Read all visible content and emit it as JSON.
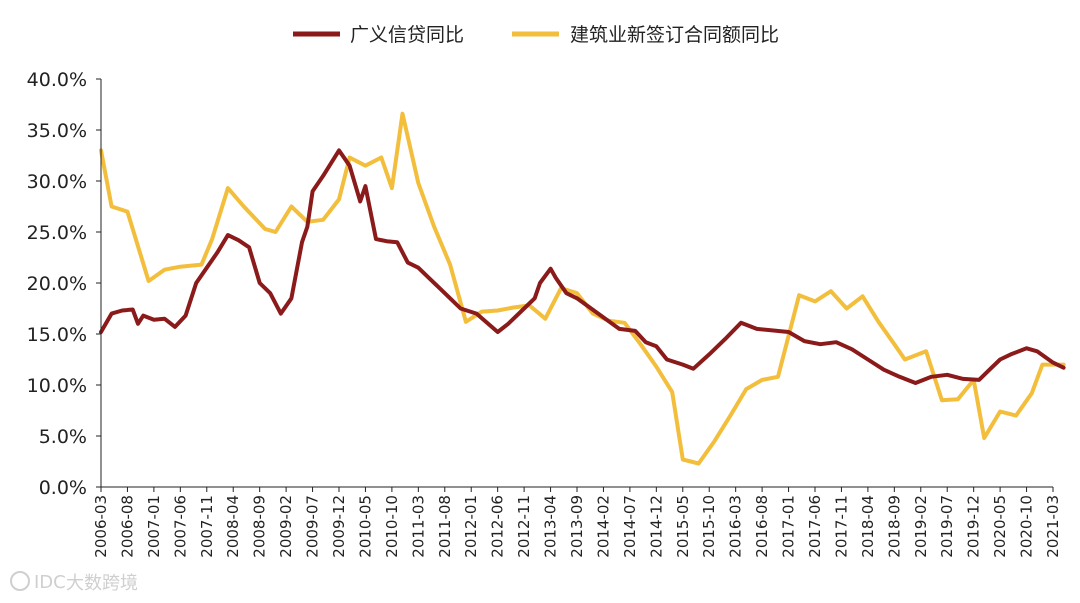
{
  "chart_data": {
    "type": "line",
    "title": "",
    "xlabel": "",
    "ylabel": "",
    "ylim": [
      0,
      40
    ],
    "y_ticks": [
      "0.0%",
      "5.0%",
      "10.0%",
      "15.0%",
      "20.0%",
      "25.0%",
      "30.0%",
      "35.0%",
      "40.0%"
    ],
    "x_ticks": [
      "2006-03",
      "2006-08",
      "2007-01",
      "2007-06",
      "2007-11",
      "2008-04",
      "2008-09",
      "2009-02",
      "2009-07",
      "2009-12",
      "2010-05",
      "2010-10",
      "2011-03",
      "2011-08",
      "2012-01",
      "2012-06",
      "2012-11",
      "2013-04",
      "2013-09",
      "2014-02",
      "2014-07",
      "2014-12",
      "2015-05",
      "2015-10",
      "2016-03",
      "2016-08",
      "2017-01",
      "2017-06",
      "2017-11",
      "2018-04",
      "2018-09",
      "2019-02",
      "2019-07",
      "2019-12",
      "2020-05",
      "2020-10",
      "2021-03"
    ],
    "x_range": [
      "2006-03",
      "2021-03"
    ],
    "legend_position": "top-center",
    "series": [
      {
        "name": "广义信贷同比",
        "color": "#8B1A1A",
        "points": [
          [
            "2006-03",
            15.2
          ],
          [
            "2006-05",
            17.0
          ],
          [
            "2006-07",
            17.3
          ],
          [
            "2006-09",
            17.4
          ],
          [
            "2006-10",
            16.0
          ],
          [
            "2006-11",
            16.8
          ],
          [
            "2007-01",
            16.4
          ],
          [
            "2007-03",
            16.5
          ],
          [
            "2007-05",
            15.7
          ],
          [
            "2007-07",
            16.8
          ],
          [
            "2007-09",
            20.0
          ],
          [
            "2007-11",
            21.5
          ],
          [
            "2008-01",
            23.0
          ],
          [
            "2008-03",
            24.7
          ],
          [
            "2008-05",
            24.2
          ],
          [
            "2008-07",
            23.5
          ],
          [
            "2008-09",
            20.0
          ],
          [
            "2008-11",
            19.0
          ],
          [
            "2009-01",
            17.0
          ],
          [
            "2009-03",
            18.5
          ],
          [
            "2009-05",
            24.0
          ],
          [
            "2009-06",
            25.5
          ],
          [
            "2009-07",
            29.0
          ],
          [
            "2009-09",
            30.5
          ],
          [
            "2009-12",
            33.0
          ],
          [
            "2010-02",
            31.5
          ],
          [
            "2010-04",
            28.0
          ],
          [
            "2010-05",
            29.5
          ],
          [
            "2010-07",
            24.3
          ],
          [
            "2010-09",
            24.1
          ],
          [
            "2010-11",
            24.0
          ],
          [
            "2011-01",
            22.0
          ],
          [
            "2011-03",
            21.5
          ],
          [
            "2011-05",
            20.5
          ],
          [
            "2011-07",
            19.5
          ],
          [
            "2011-09",
            18.5
          ],
          [
            "2011-11",
            17.5
          ],
          [
            "2012-02",
            17.0
          ],
          [
            "2012-06",
            15.2
          ],
          [
            "2012-08",
            16.0
          ],
          [
            "2012-11",
            17.5
          ],
          [
            "2013-01",
            18.5
          ],
          [
            "2013-02",
            20.0
          ],
          [
            "2013-04",
            21.4
          ],
          [
            "2013-05",
            20.5
          ],
          [
            "2013-07",
            19.0
          ],
          [
            "2013-09",
            18.5
          ],
          [
            "2014-01",
            17.0
          ],
          [
            "2014-05",
            15.5
          ],
          [
            "2014-08",
            15.3
          ],
          [
            "2014-10",
            14.2
          ],
          [
            "2014-12",
            13.8
          ],
          [
            "2015-02",
            12.5
          ],
          [
            "2015-05",
            12.0
          ],
          [
            "2015-07",
            11.6
          ],
          [
            "2015-10",
            13.0
          ],
          [
            "2016-01",
            14.5
          ],
          [
            "2016-04",
            16.1
          ],
          [
            "2016-07",
            15.5
          ],
          [
            "2017-01",
            15.2
          ],
          [
            "2017-04",
            14.3
          ],
          [
            "2017-07",
            14.0
          ],
          [
            "2017-10",
            14.2
          ],
          [
            "2018-01",
            13.5
          ],
          [
            "2018-04",
            12.5
          ],
          [
            "2018-07",
            11.5
          ],
          [
            "2018-10",
            10.8
          ],
          [
            "2019-01",
            10.2
          ],
          [
            "2019-04",
            10.8
          ],
          [
            "2019-07",
            11.0
          ],
          [
            "2019-10",
            10.6
          ],
          [
            "2020-01",
            10.5
          ],
          [
            "2020-03",
            11.5
          ],
          [
            "2020-05",
            12.5
          ],
          [
            "2020-07",
            13.0
          ],
          [
            "2020-10",
            13.6
          ],
          [
            "2020-12",
            13.3
          ],
          [
            "2021-03",
            12.2
          ],
          [
            "2021-05",
            11.7
          ]
        ]
      },
      {
        "name": "建筑业新签订合同额同比",
        "color": "#F2BE3C",
        "points": [
          [
            "2006-03",
            33.0
          ],
          [
            "2006-05",
            27.5
          ],
          [
            "2006-08",
            27.0
          ],
          [
            "2006-12",
            20.2
          ],
          [
            "2007-03",
            21.3
          ],
          [
            "2007-06",
            21.6
          ],
          [
            "2007-10",
            21.8
          ],
          [
            "2007-12",
            24.3
          ],
          [
            "2008-03",
            29.3
          ],
          [
            "2008-06",
            27.5
          ],
          [
            "2008-10",
            25.3
          ],
          [
            "2008-12",
            25.0
          ],
          [
            "2009-03",
            27.5
          ],
          [
            "2009-06",
            26.0
          ],
          [
            "2009-09",
            26.2
          ],
          [
            "2009-12",
            28.2
          ],
          [
            "2010-02",
            32.3
          ],
          [
            "2010-05",
            31.5
          ],
          [
            "2010-08",
            32.3
          ],
          [
            "2010-10",
            29.3
          ],
          [
            "2010-12",
            36.6
          ],
          [
            "2011-03",
            29.8
          ],
          [
            "2011-06",
            25.5
          ],
          [
            "2011-09",
            21.8
          ],
          [
            "2011-12",
            16.2
          ],
          [
            "2012-03",
            17.2
          ],
          [
            "2012-06",
            17.3
          ],
          [
            "2012-09",
            17.6
          ],
          [
            "2012-12",
            17.8
          ],
          [
            "2013-03",
            16.5
          ],
          [
            "2013-06",
            19.5
          ],
          [
            "2013-09",
            19.0
          ],
          [
            "2013-12",
            17.0
          ],
          [
            "2014-03",
            16.3
          ],
          [
            "2014-06",
            16.1
          ],
          [
            "2014-09",
            14.0
          ],
          [
            "2014-12",
            11.8
          ],
          [
            "2015-03",
            9.3
          ],
          [
            "2015-05",
            2.7
          ],
          [
            "2015-08",
            2.3
          ],
          [
            "2015-11",
            4.5
          ],
          [
            "2016-02",
            7.0
          ],
          [
            "2016-05",
            9.6
          ],
          [
            "2016-08",
            10.5
          ],
          [
            "2016-11",
            10.8
          ],
          [
            "2017-03",
            18.8
          ],
          [
            "2017-06",
            18.2
          ],
          [
            "2017-09",
            19.2
          ],
          [
            "2017-12",
            17.5
          ],
          [
            "2018-03",
            18.7
          ],
          [
            "2018-06",
            16.2
          ],
          [
            "2018-09",
            14.0
          ],
          [
            "2018-11",
            12.5
          ],
          [
            "2019-03",
            13.3
          ],
          [
            "2019-06",
            8.5
          ],
          [
            "2019-09",
            8.6
          ],
          [
            "2019-12",
            10.5
          ],
          [
            "2020-02",
            4.8
          ],
          [
            "2020-05",
            7.4
          ],
          [
            "2020-08",
            7.0
          ],
          [
            "2020-11",
            9.2
          ],
          [
            "2021-01",
            12.0
          ],
          [
            "2021-05",
            12.0
          ]
        ]
      }
    ]
  },
  "watermark": {
    "text": "大数跨境",
    "logo_text": "IDC",
    "icon": "wechat-channel-icon"
  }
}
